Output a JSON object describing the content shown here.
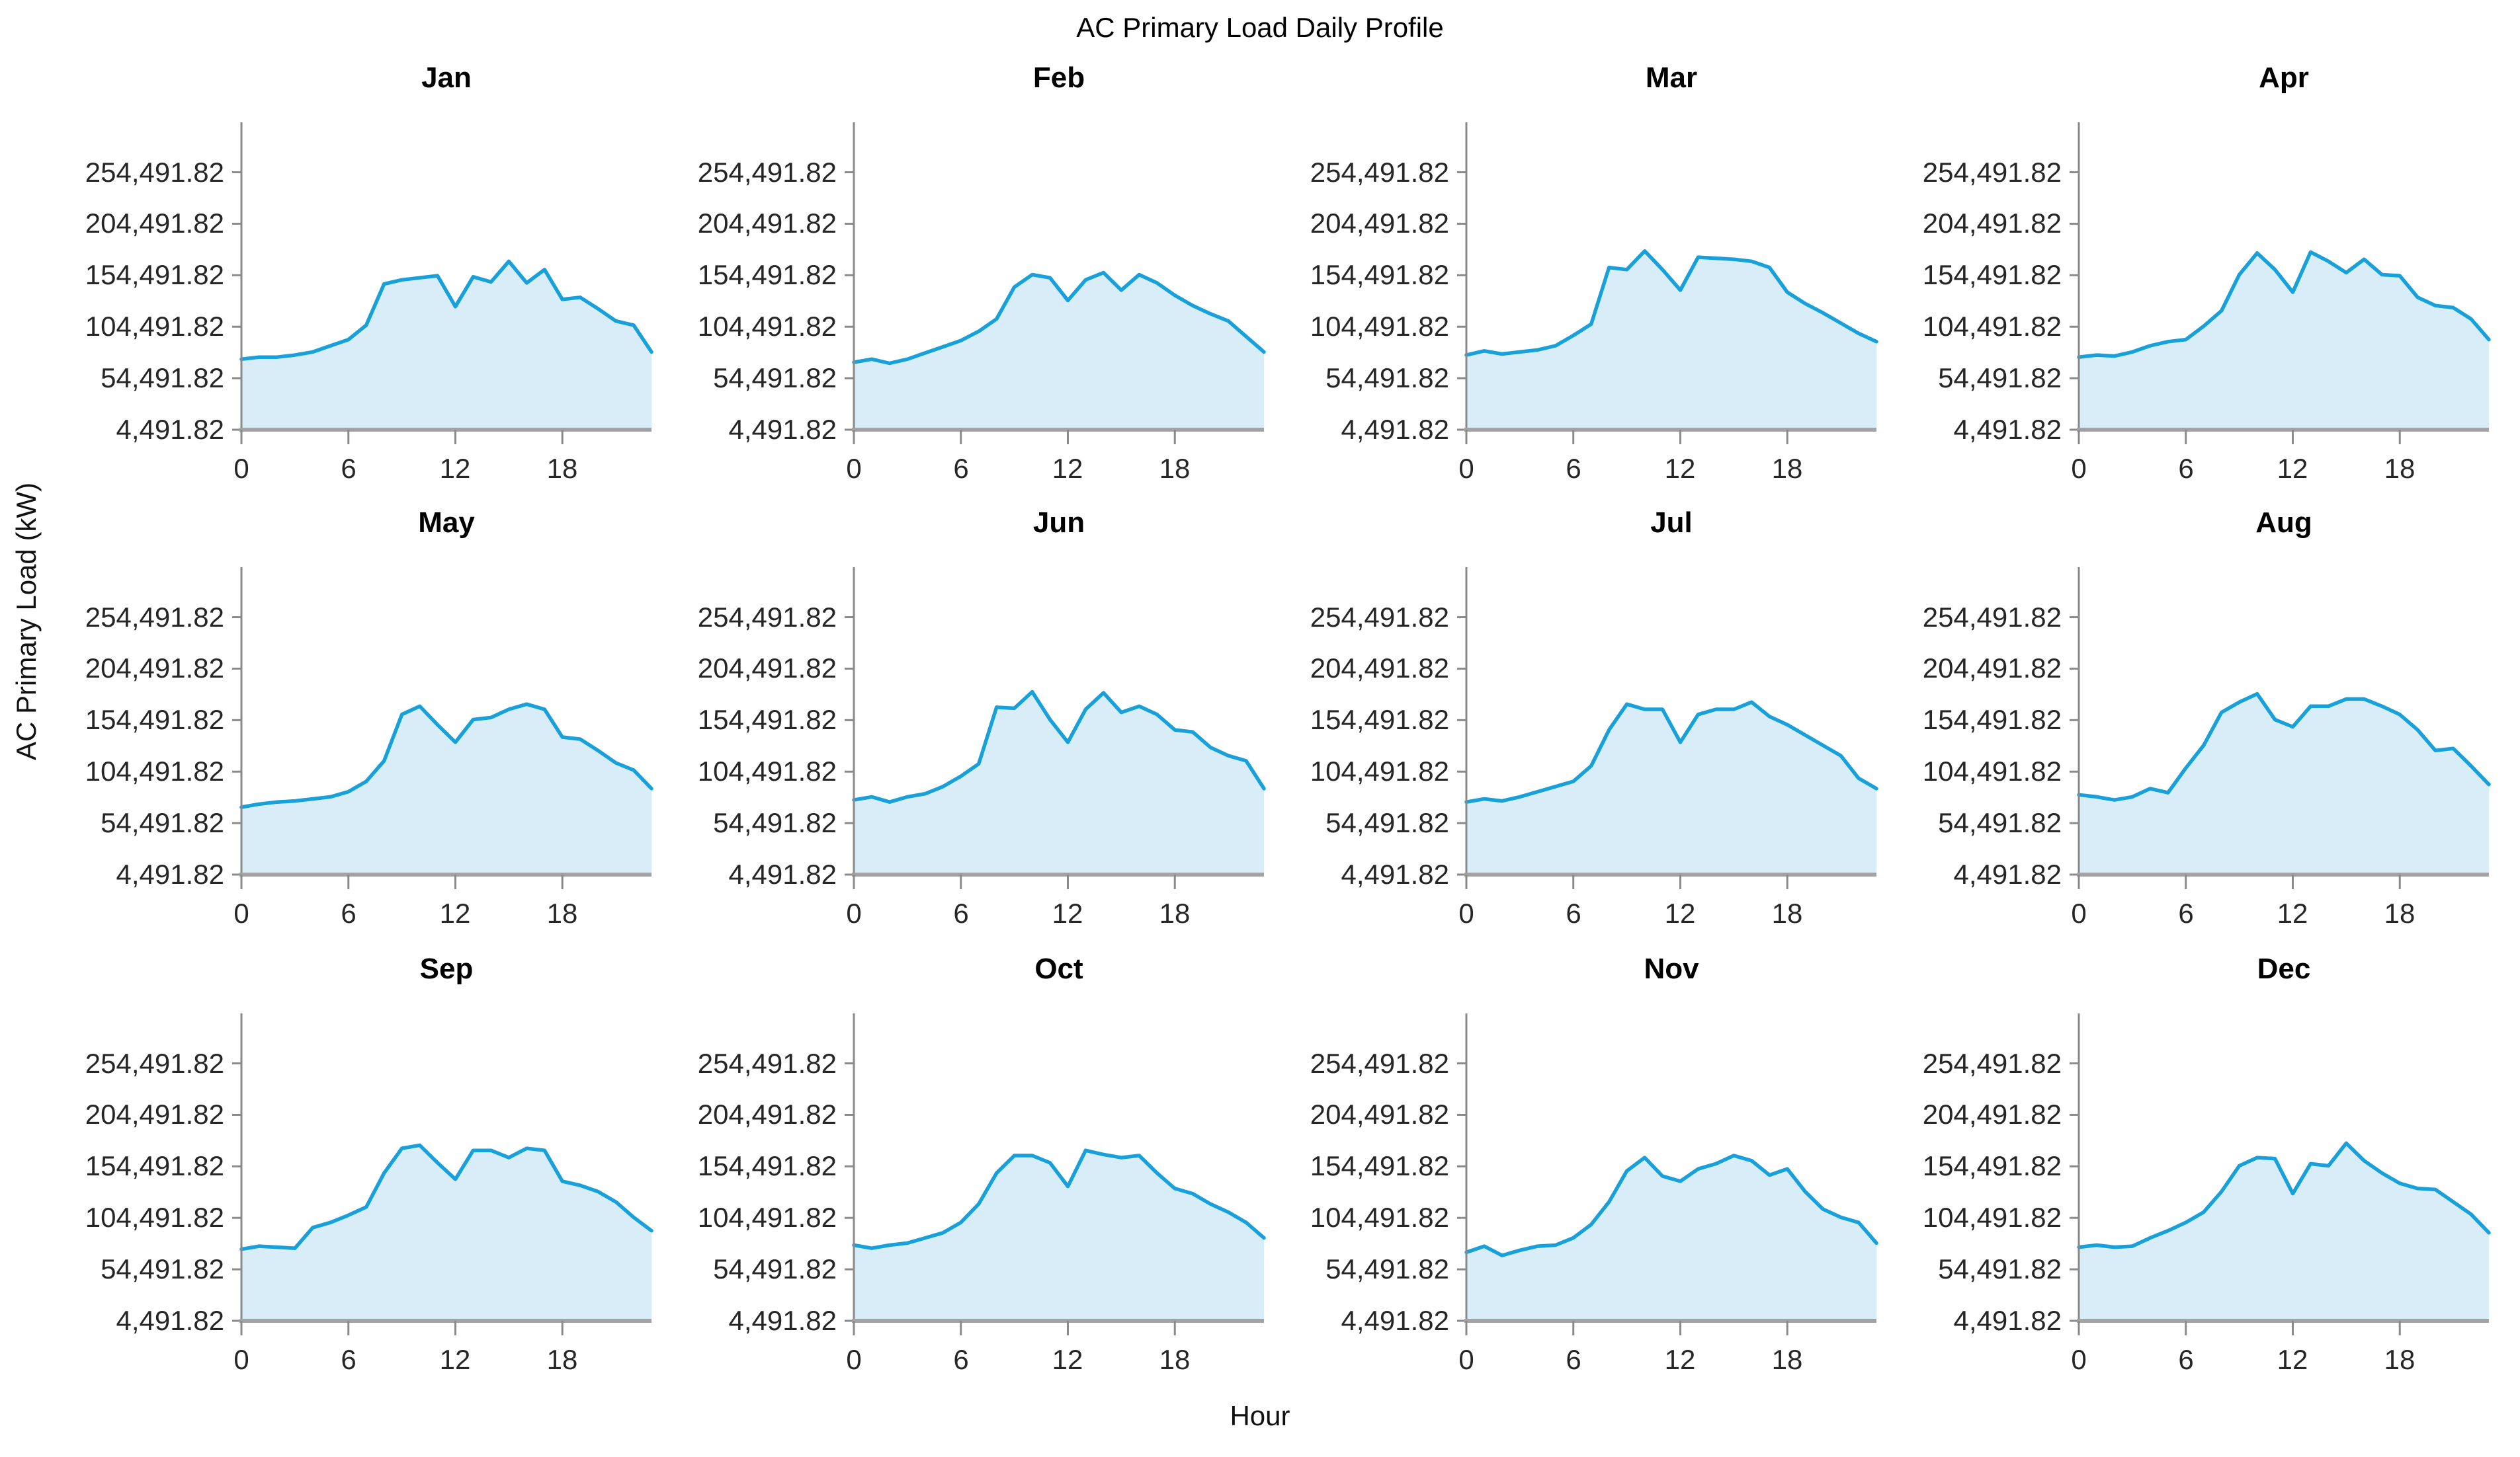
{
  "title": "AC Primary Load Daily Profile",
  "xlabel": "Hour",
  "ylabel": "AC Primary Load (kW)",
  "colors": {
    "line": "#17a0da",
    "fill": "#d8edf8",
    "axis": "#8a8a8a",
    "baseline": "#a3a3a3",
    "tick_text": "#262626"
  },
  "chart_data": {
    "type": "area",
    "title": "AC Primary Load Daily Profile",
    "xlabel": "Hour",
    "ylabel": "AC Primary Load (kW)",
    "x": [
      0,
      1,
      2,
      3,
      4,
      5,
      6,
      7,
      8,
      9,
      10,
      11,
      12,
      13,
      14,
      15,
      16,
      17,
      18,
      19,
      20,
      21,
      22,
      23
    ],
    "x_ticks": [
      0,
      6,
      12,
      18
    ],
    "x_tick_labels": [
      "0",
      "6",
      "12",
      "18"
    ],
    "y_ticks": [
      254491.82,
      204491.82,
      154491.82,
      104491.82,
      54491.82,
      4491.82
    ],
    "y_tick_labels": [
      "254,491.82",
      "204,491.82",
      "154,491.82",
      "104,491.82",
      "54,491.82",
      "4,491.82"
    ],
    "ylim": [
      4491.82,
      303000
    ],
    "xlim": [
      0,
      23
    ],
    "grid": false,
    "legend": "none",
    "series": [
      {
        "name": "Jan",
        "values": [
          73000,
          75000,
          75000,
          77000,
          80000,
          86000,
          92000,
          106000,
          146000,
          150000,
          152000,
          154000,
          124000,
          153000,
          148000,
          168000,
          147000,
          160000,
          131000,
          133000,
          122000,
          110000,
          106000,
          80000
        ]
      },
      {
        "name": "Feb",
        "values": [
          70000,
          73000,
          69000,
          73000,
          79000,
          85000,
          91000,
          100000,
          112000,
          143000,
          155000,
          152000,
          130000,
          150000,
          157000,
          140000,
          155000,
          147000,
          135000,
          125000,
          117000,
          110000,
          95000,
          80000
        ]
      },
      {
        "name": "Mar",
        "values": [
          77000,
          81000,
          78000,
          80000,
          82000,
          86000,
          96000,
          107000,
          162000,
          160000,
          178000,
          160000,
          140000,
          172000,
          171000,
          170000,
          168000,
          162000,
          138000,
          127000,
          118000,
          108000,
          98000,
          90000
        ]
      },
      {
        "name": "Apr",
        "values": [
          75000,
          77000,
          76000,
          80000,
          86000,
          90000,
          92000,
          105000,
          120000,
          155000,
          176000,
          160000,
          138000,
          177000,
          168000,
          157000,
          170000,
          155000,
          154000,
          133000,
          125000,
          123000,
          112000,
          92000
        ]
      },
      {
        "name": "May",
        "values": [
          70000,
          73000,
          75000,
          76000,
          78000,
          80000,
          85000,
          95000,
          115000,
          160000,
          168000,
          150000,
          133000,
          155000,
          157000,
          165000,
          170000,
          165000,
          138000,
          136000,
          125000,
          113000,
          106000,
          88000
        ]
      },
      {
        "name": "Jun",
        "values": [
          77000,
          80000,
          75000,
          80000,
          83000,
          90000,
          100000,
          112000,
          167000,
          166000,
          182000,
          155000,
          133000,
          165000,
          181000,
          162000,
          168000,
          160000,
          145000,
          143000,
          128000,
          120000,
          115000,
          88000
        ]
      },
      {
        "name": "Jul",
        "values": [
          75000,
          78000,
          76000,
          80000,
          85000,
          90000,
          95000,
          110000,
          145000,
          170000,
          165000,
          165000,
          133000,
          160000,
          165000,
          165000,
          172000,
          158000,
          150000,
          140000,
          130000,
          120000,
          98000,
          88000
        ]
      },
      {
        "name": "Aug",
        "values": [
          82000,
          80000,
          77000,
          80000,
          88000,
          84000,
          108000,
          130000,
          162000,
          172000,
          180000,
          155000,
          148000,
          168000,
          168000,
          175000,
          175000,
          168000,
          160000,
          145000,
          125000,
          127000,
          110000,
          92000
        ]
      },
      {
        "name": "Sep",
        "values": [
          74000,
          77000,
          76000,
          75000,
          95000,
          100000,
          107000,
          115000,
          148000,
          172000,
          175000,
          158000,
          142000,
          170000,
          170000,
          163000,
          172000,
          170000,
          140000,
          136000,
          130000,
          120000,
          105000,
          92000
        ]
      },
      {
        "name": "Oct",
        "values": [
          78000,
          75000,
          78000,
          80000,
          85000,
          90000,
          100000,
          118000,
          148000,
          165000,
          165000,
          158000,
          135000,
          170000,
          166000,
          163000,
          165000,
          148000,
          133000,
          128000,
          118000,
          110000,
          100000,
          85000
        ]
      },
      {
        "name": "Nov",
        "values": [
          71000,
          77000,
          68000,
          73000,
          77000,
          78000,
          85000,
          98000,
          120000,
          150000,
          163000,
          145000,
          140000,
          152000,
          157000,
          165000,
          160000,
          146000,
          152000,
          130000,
          113000,
          105000,
          100000,
          80000
        ]
      },
      {
        "name": "Dec",
        "values": [
          76000,
          78000,
          76000,
          77000,
          85000,
          92000,
          100000,
          110000,
          130000,
          155000,
          163000,
          162000,
          128000,
          157000,
          155000,
          177000,
          160000,
          148000,
          138000,
          133000,
          132000,
          120000,
          108000,
          90000
        ]
      }
    ]
  }
}
